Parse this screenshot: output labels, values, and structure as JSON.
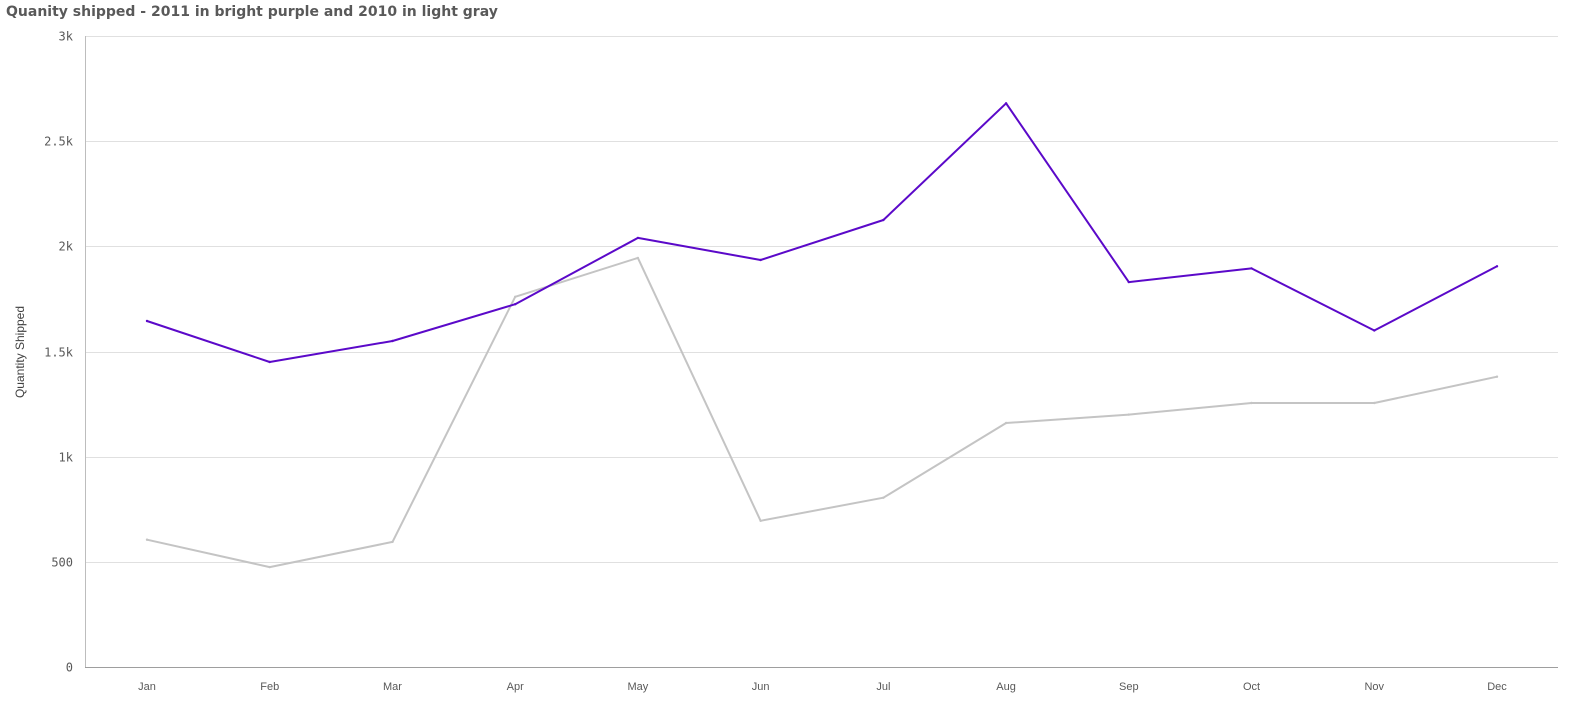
{
  "chart_data": {
    "type": "line",
    "title": "Quanity shipped - 2011 in bright purple and 2010 in light gray",
    "xlabel": "",
    "ylabel": "Quantity Shipped",
    "categories": [
      "Jan",
      "Feb",
      "Mar",
      "Apr",
      "May",
      "Jun",
      "Jul",
      "Aug",
      "Sep",
      "Oct",
      "Nov",
      "Dec"
    ],
    "ylim": [
      0,
      3000
    ],
    "yticks": [
      0,
      500,
      1000,
      1500,
      2000,
      2500,
      3000
    ],
    "ytick_labels": [
      "0",
      "500",
      "1k",
      "1.5k",
      "2k",
      "2.5k",
      "3k"
    ],
    "grid": true,
    "series": [
      {
        "color": "#5b09c9",
        "values": [
          1645,
          1450,
          1550,
          1725,
          2040,
          1935,
          2125,
          2680,
          1830,
          1895,
          1600,
          1905
        ]
      },
      {
        "color": "#c4c4c4",
        "values": [
          605,
          475,
          595,
          1760,
          1945,
          695,
          805,
          1160,
          1200,
          1255,
          1255,
          1380
        ]
      }
    ]
  }
}
